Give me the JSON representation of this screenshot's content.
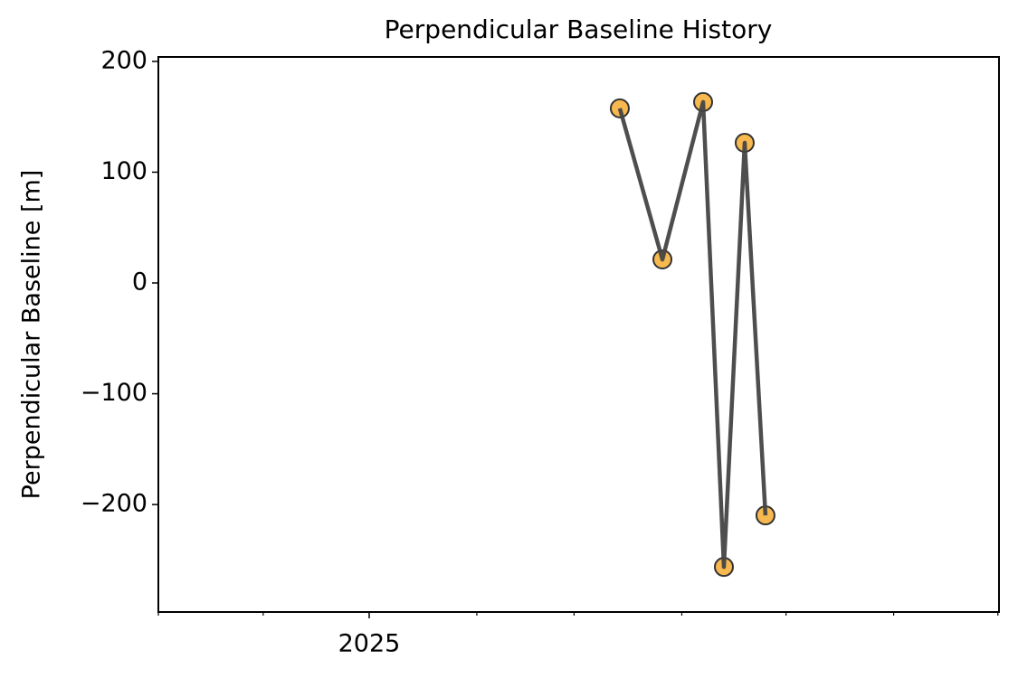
{
  "chart_data": {
    "type": "line",
    "title": "Perpendicular Baseline History",
    "y_label": "Perpendicular Baseline [m]",
    "x": [
      2025.1977,
      2025.2313,
      2025.2634,
      2025.2798,
      2025.2962,
      2025.3126
    ],
    "series": [
      {
        "values": [
          157.6,
          21.2,
          163.3,
          -256.3,
          126.5,
          -209.8
        ],
        "color": "#444444",
        "marker_color": "#f5a623"
      }
    ],
    "xlim": [
      2024.8337,
      2025.4968
    ],
    "xticks": [
      {
        "value": 2025,
        "label": "2025"
      }
    ],
    "xminorticks": [
      2024.8337,
      2024.9164,
      2025.0849,
      2025.1616,
      2025.2466,
      2025.3288,
      2025.4137,
      2025.4959
    ],
    "ylim": [
      -297,
      204
    ],
    "yticks": [
      {
        "value": 200,
        "label": "200"
      },
      {
        "value": 100,
        "label": "100"
      },
      0,
      {
        "value": -100,
        "label": "−100"
      },
      {
        "value": -200,
        "label": "−200"
      }
    ],
    "grid": false
  }
}
